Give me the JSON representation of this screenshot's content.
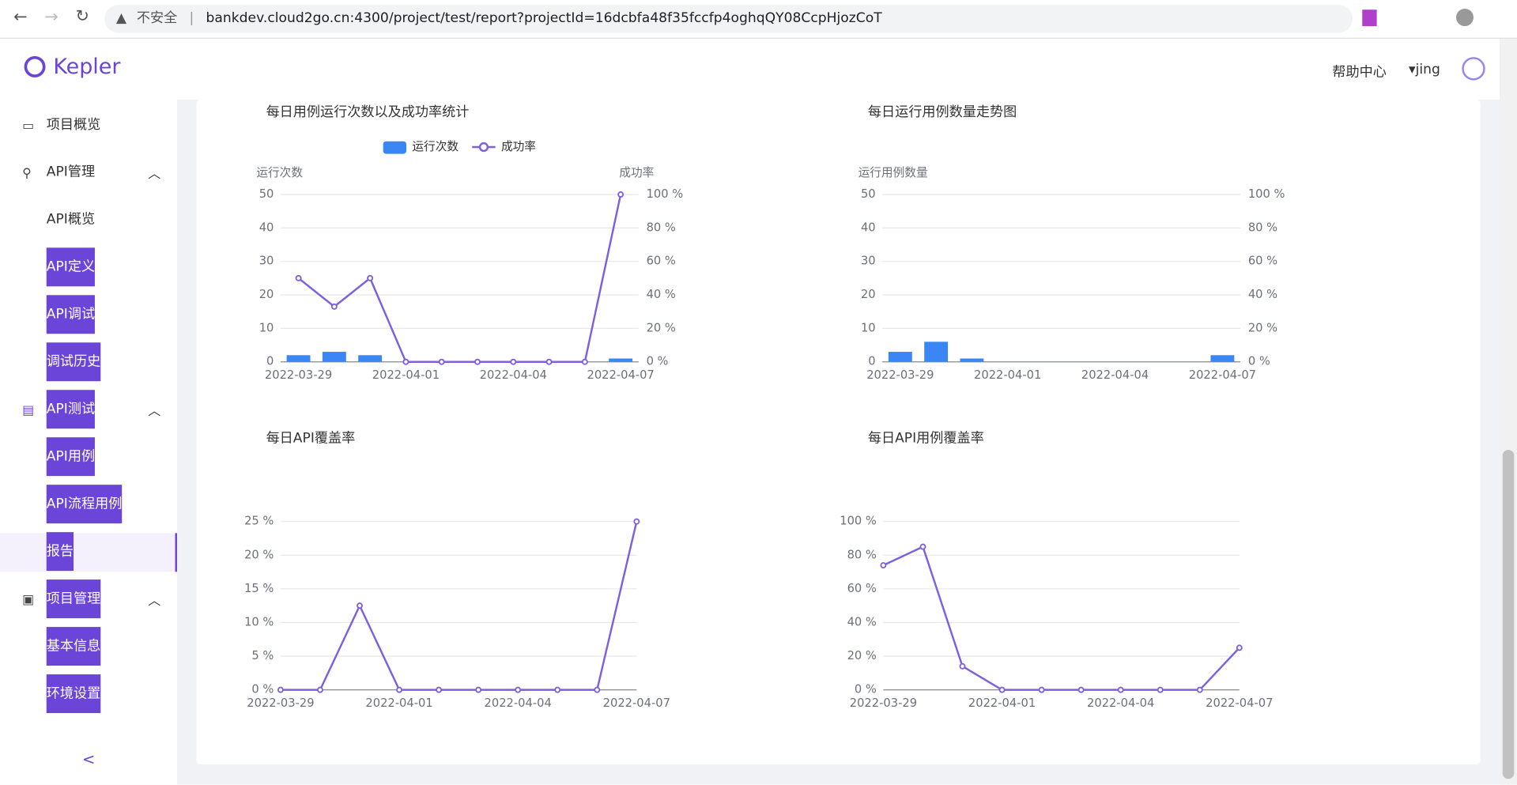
{
  "browser": {
    "security": "不安全",
    "url": "bankdev.cloud2go.cn:4300/project/test/report?projectId=16dcbfa48f35fccfp4oghqQY08CcpHjozCoT"
  },
  "header": {
    "logo": "Kepler",
    "help": "帮助中心",
    "user": "jing"
  },
  "sidebar": {
    "items": [
      "项目概览",
      "API管理",
      "API概览",
      "API定义",
      "API调试",
      "调试历史",
      "API测试",
      "API用例",
      "API流程用例",
      "报告",
      "项目管理",
      "基本信息",
      "环境设置"
    ]
  },
  "chart_data": [
    {
      "type": "combo",
      "title": "每日用例运行次数以及成功率统计",
      "y_label": "运行次数",
      "y2_label": "成功率",
      "categories": [
        "2022-03-29",
        null,
        null,
        "2022-04-01",
        null,
        null,
        "2022-04-04",
        null,
        null,
        "2022-04-07"
      ],
      "series": [
        {
          "name": "运行次数",
          "type": "bar",
          "color": "#3b86f5",
          "values": [
            2,
            3,
            2,
            0,
            0,
            0,
            0,
            0,
            0,
            1
          ]
        },
        {
          "name": "成功率",
          "type": "line",
          "axis": "y2",
          "color": "#7d5fe0",
          "values": [
            50,
            33,
            50,
            0,
            0,
            0,
            0,
            0,
            0,
            100
          ]
        }
      ],
      "ylim": [
        0,
        50
      ],
      "yticks": [
        0,
        10,
        20,
        30,
        40,
        50
      ],
      "y2lim": [
        0,
        100
      ],
      "y2ticks": [
        {
          "value": 0,
          "label": "0 %"
        },
        {
          "value": 20,
          "label": "20 %"
        },
        {
          "value": 40,
          "label": "40 %"
        },
        {
          "value": 60,
          "label": "60 %"
        },
        {
          "value": 80,
          "label": "80 %"
        },
        {
          "value": 100,
          "label": "100 %"
        }
      ],
      "grid": true,
      "legend": "top"
    },
    {
      "type": "bar",
      "title": "每日运行用例数量走势图",
      "y_label": "运行用例数量",
      "categories": [
        "2022-03-29",
        null,
        null,
        "2022-04-01",
        null,
        null,
        "2022-04-04",
        null,
        null,
        "2022-04-07"
      ],
      "values": [
        3,
        6,
        1,
        0,
        0,
        0,
        0,
        0,
        0,
        2
      ],
      "color": "#3b86f5",
      "ylim": [
        0,
        50
      ],
      "yticks": [
        0,
        10,
        20,
        30,
        40,
        50
      ],
      "y2lim": [
        0,
        100
      ],
      "y2ticks": [
        {
          "value": 0,
          "label": "0 %"
        },
        {
          "value": 20,
          "label": "20 %"
        },
        {
          "value": 40,
          "label": "40 %"
        },
        {
          "value": 60,
          "label": "60 %"
        },
        {
          "value": 80,
          "label": "80 %"
        },
        {
          "value": 100,
          "label": "100 %"
        }
      ],
      "grid": true
    },
    {
      "type": "line",
      "title": "每日API覆盖率",
      "categories": [
        "2022-03-29",
        null,
        null,
        "2022-04-01",
        null,
        null,
        "2022-04-04",
        null,
        null,
        "2022-04-07"
      ],
      "values": [
        0,
        0,
        12.5,
        0,
        0,
        0,
        0,
        0,
        0,
        25
      ],
      "color": "#7d5fe0",
      "ylim": [
        0,
        25
      ],
      "yticks": [
        {
          "value": 0,
          "label": "0 %"
        },
        {
          "value": 5,
          "label": "5 %"
        },
        {
          "value": 10,
          "label": "10 %"
        },
        {
          "value": 15,
          "label": "15 %"
        },
        {
          "value": 20,
          "label": "20 %"
        },
        {
          "value": 25,
          "label": "25 %"
        }
      ],
      "grid": true
    },
    {
      "type": "line",
      "title": "每日API用例覆盖率",
      "categories": [
        "2022-03-29",
        null,
        null,
        "2022-04-01",
        null,
        null,
        "2022-04-04",
        null,
        null,
        "2022-04-07"
      ],
      "values": [
        74,
        85,
        14,
        0,
        0,
        0,
        0,
        0,
        0,
        25
      ],
      "color": "#7d5fe0",
      "ylim": [
        0,
        100
      ],
      "yticks": [
        {
          "value": 0,
          "label": "0 %"
        },
        {
          "value": 20,
          "label": "20 %"
        },
        {
          "value": 40,
          "label": "40 %"
        },
        {
          "value": 60,
          "label": "60 %"
        },
        {
          "value": 80,
          "label": "80 %"
        },
        {
          "value": 100,
          "label": "100 %"
        }
      ],
      "grid": true
    }
  ]
}
